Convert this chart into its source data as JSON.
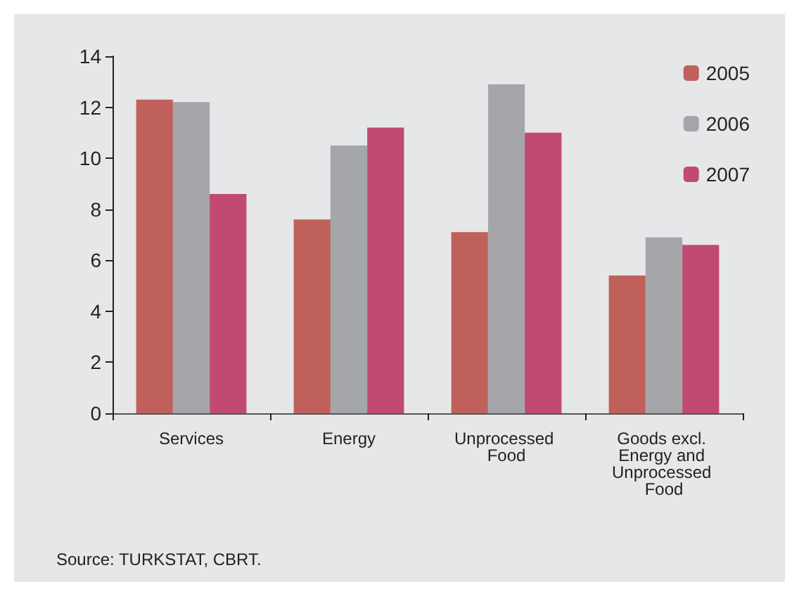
{
  "chart_data": {
    "type": "bar",
    "categories": [
      "Services",
      "Energy",
      "Unprocessed Food",
      "Goods excl. Energy and Unprocessed Food"
    ],
    "series": [
      {
        "name": "2005",
        "color": "#c0605a",
        "values": [
          12.3,
          7.6,
          7.1,
          5.4
        ]
      },
      {
        "name": "2006",
        "color": "#a4a6aa",
        "values": [
          12.2,
          10.5,
          12.9,
          6.9
        ]
      },
      {
        "name": "2007",
        "color": "#c04a70",
        "values": [
          8.6,
          11.2,
          11.0,
          6.6
        ]
      }
    ],
    "ylim": [
      0,
      14
    ],
    "yticks": [
      0,
      2,
      4,
      6,
      8,
      10,
      12,
      14
    ],
    "grid": false,
    "legend": "top right",
    "annotations": [
      "Source: TURKSTAT, CBRT."
    ]
  }
}
